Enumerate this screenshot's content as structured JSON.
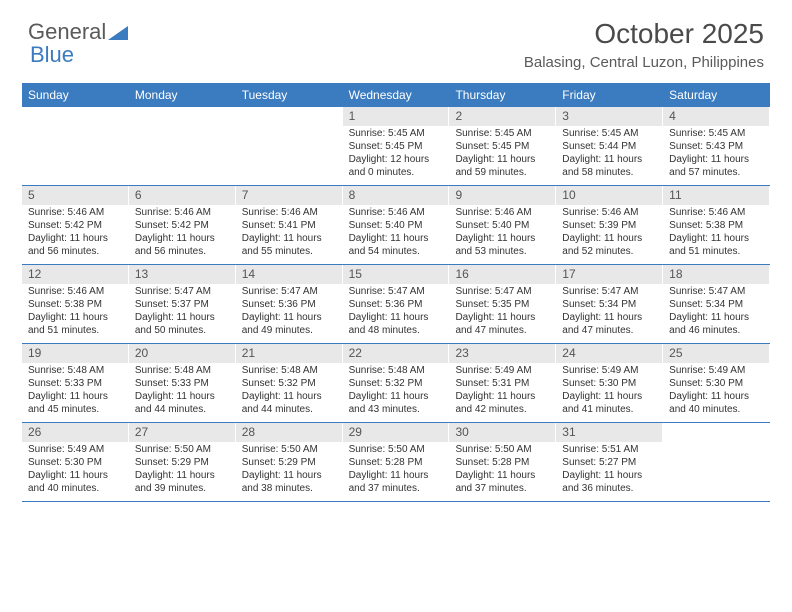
{
  "logo": {
    "text1": "General",
    "text2": "Blue"
  },
  "title": {
    "month": "October 2025",
    "location": "Balasing, Central Luzon, Philippines"
  },
  "colors": {
    "header_bg": "#3b7bbf",
    "header_text": "#ffffff",
    "date_bg": "#e8e8e8",
    "text": "#333333",
    "row_border": "#3b7bbf"
  },
  "days": [
    "Sunday",
    "Monday",
    "Tuesday",
    "Wednesday",
    "Thursday",
    "Friday",
    "Saturday"
  ],
  "cells": [
    {
      "d": "",
      "t": ""
    },
    {
      "d": "",
      "t": ""
    },
    {
      "d": "",
      "t": ""
    },
    {
      "d": "1",
      "sr": "Sunrise: 5:45 AM",
      "ss": "Sunset: 5:45 PM",
      "dl1": "Daylight: 12 hours",
      "dl2": "and 0 minutes."
    },
    {
      "d": "2",
      "sr": "Sunrise: 5:45 AM",
      "ss": "Sunset: 5:45 PM",
      "dl1": "Daylight: 11 hours",
      "dl2": "and 59 minutes."
    },
    {
      "d": "3",
      "sr": "Sunrise: 5:45 AM",
      "ss": "Sunset: 5:44 PM",
      "dl1": "Daylight: 11 hours",
      "dl2": "and 58 minutes."
    },
    {
      "d": "4",
      "sr": "Sunrise: 5:45 AM",
      "ss": "Sunset: 5:43 PM",
      "dl1": "Daylight: 11 hours",
      "dl2": "and 57 minutes."
    },
    {
      "d": "5",
      "sr": "Sunrise: 5:46 AM",
      "ss": "Sunset: 5:42 PM",
      "dl1": "Daylight: 11 hours",
      "dl2": "and 56 minutes."
    },
    {
      "d": "6",
      "sr": "Sunrise: 5:46 AM",
      "ss": "Sunset: 5:42 PM",
      "dl1": "Daylight: 11 hours",
      "dl2": "and 56 minutes."
    },
    {
      "d": "7",
      "sr": "Sunrise: 5:46 AM",
      "ss": "Sunset: 5:41 PM",
      "dl1": "Daylight: 11 hours",
      "dl2": "and 55 minutes."
    },
    {
      "d": "8",
      "sr": "Sunrise: 5:46 AM",
      "ss": "Sunset: 5:40 PM",
      "dl1": "Daylight: 11 hours",
      "dl2": "and 54 minutes."
    },
    {
      "d": "9",
      "sr": "Sunrise: 5:46 AM",
      "ss": "Sunset: 5:40 PM",
      "dl1": "Daylight: 11 hours",
      "dl2": "and 53 minutes."
    },
    {
      "d": "10",
      "sr": "Sunrise: 5:46 AM",
      "ss": "Sunset: 5:39 PM",
      "dl1": "Daylight: 11 hours",
      "dl2": "and 52 minutes."
    },
    {
      "d": "11",
      "sr": "Sunrise: 5:46 AM",
      "ss": "Sunset: 5:38 PM",
      "dl1": "Daylight: 11 hours",
      "dl2": "and 51 minutes."
    },
    {
      "d": "12",
      "sr": "Sunrise: 5:46 AM",
      "ss": "Sunset: 5:38 PM",
      "dl1": "Daylight: 11 hours",
      "dl2": "and 51 minutes."
    },
    {
      "d": "13",
      "sr": "Sunrise: 5:47 AM",
      "ss": "Sunset: 5:37 PM",
      "dl1": "Daylight: 11 hours",
      "dl2": "and 50 minutes."
    },
    {
      "d": "14",
      "sr": "Sunrise: 5:47 AM",
      "ss": "Sunset: 5:36 PM",
      "dl1": "Daylight: 11 hours",
      "dl2": "and 49 minutes."
    },
    {
      "d": "15",
      "sr": "Sunrise: 5:47 AM",
      "ss": "Sunset: 5:36 PM",
      "dl1": "Daylight: 11 hours",
      "dl2": "and 48 minutes."
    },
    {
      "d": "16",
      "sr": "Sunrise: 5:47 AM",
      "ss": "Sunset: 5:35 PM",
      "dl1": "Daylight: 11 hours",
      "dl2": "and 47 minutes."
    },
    {
      "d": "17",
      "sr": "Sunrise: 5:47 AM",
      "ss": "Sunset: 5:34 PM",
      "dl1": "Daylight: 11 hours",
      "dl2": "and 47 minutes."
    },
    {
      "d": "18",
      "sr": "Sunrise: 5:47 AM",
      "ss": "Sunset: 5:34 PM",
      "dl1": "Daylight: 11 hours",
      "dl2": "and 46 minutes."
    },
    {
      "d": "19",
      "sr": "Sunrise: 5:48 AM",
      "ss": "Sunset: 5:33 PM",
      "dl1": "Daylight: 11 hours",
      "dl2": "and 45 minutes."
    },
    {
      "d": "20",
      "sr": "Sunrise: 5:48 AM",
      "ss": "Sunset: 5:33 PM",
      "dl1": "Daylight: 11 hours",
      "dl2": "and 44 minutes."
    },
    {
      "d": "21",
      "sr": "Sunrise: 5:48 AM",
      "ss": "Sunset: 5:32 PM",
      "dl1": "Daylight: 11 hours",
      "dl2": "and 44 minutes."
    },
    {
      "d": "22",
      "sr": "Sunrise: 5:48 AM",
      "ss": "Sunset: 5:32 PM",
      "dl1": "Daylight: 11 hours",
      "dl2": "and 43 minutes."
    },
    {
      "d": "23",
      "sr": "Sunrise: 5:49 AM",
      "ss": "Sunset: 5:31 PM",
      "dl1": "Daylight: 11 hours",
      "dl2": "and 42 minutes."
    },
    {
      "d": "24",
      "sr": "Sunrise: 5:49 AM",
      "ss": "Sunset: 5:30 PM",
      "dl1": "Daylight: 11 hours",
      "dl2": "and 41 minutes."
    },
    {
      "d": "25",
      "sr": "Sunrise: 5:49 AM",
      "ss": "Sunset: 5:30 PM",
      "dl1": "Daylight: 11 hours",
      "dl2": "and 40 minutes."
    },
    {
      "d": "26",
      "sr": "Sunrise: 5:49 AM",
      "ss": "Sunset: 5:30 PM",
      "dl1": "Daylight: 11 hours",
      "dl2": "and 40 minutes."
    },
    {
      "d": "27",
      "sr": "Sunrise: 5:50 AM",
      "ss": "Sunset: 5:29 PM",
      "dl1": "Daylight: 11 hours",
      "dl2": "and 39 minutes."
    },
    {
      "d": "28",
      "sr": "Sunrise: 5:50 AM",
      "ss": "Sunset: 5:29 PM",
      "dl1": "Daylight: 11 hours",
      "dl2": "and 38 minutes."
    },
    {
      "d": "29",
      "sr": "Sunrise: 5:50 AM",
      "ss": "Sunset: 5:28 PM",
      "dl1": "Daylight: 11 hours",
      "dl2": "and 37 minutes."
    },
    {
      "d": "30",
      "sr": "Sunrise: 5:50 AM",
      "ss": "Sunset: 5:28 PM",
      "dl1": "Daylight: 11 hours",
      "dl2": "and 37 minutes."
    },
    {
      "d": "31",
      "sr": "Sunrise: 5:51 AM",
      "ss": "Sunset: 5:27 PM",
      "dl1": "Daylight: 11 hours",
      "dl2": "and 36 minutes."
    },
    {
      "d": "",
      "t": ""
    }
  ]
}
